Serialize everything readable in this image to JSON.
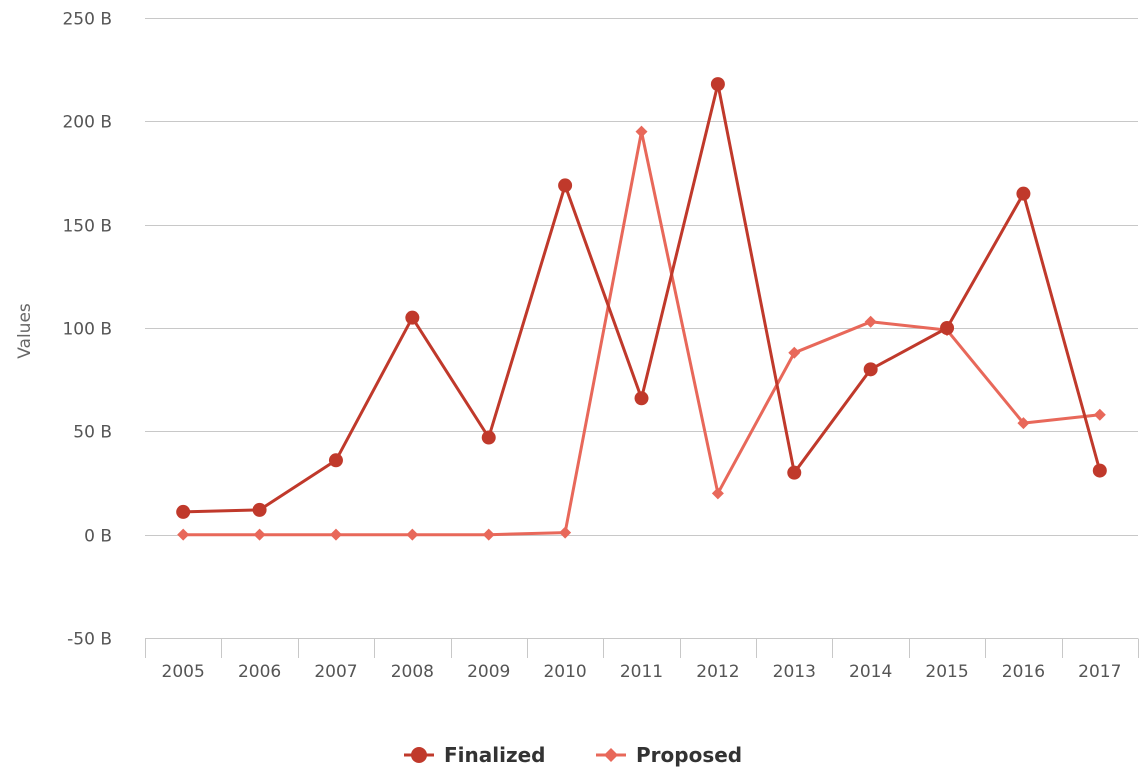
{
  "chart_data": {
    "type": "line",
    "ylabel": "Values",
    "xlabel": "",
    "x": [
      "2005",
      "2006",
      "2007",
      "2008",
      "2009",
      "2010",
      "2011",
      "2012",
      "2013",
      "2014",
      "2015",
      "2016",
      "2017"
    ],
    "ylim": [
      -50,
      250
    ],
    "yticks": [
      -50,
      0,
      50,
      100,
      150,
      200,
      250
    ],
    "ytick_labels": [
      "-50 B",
      "0 B",
      "50 B",
      "100 B",
      "150 B",
      "200 B",
      "250 B"
    ],
    "grid": true,
    "legend_position": "bottom-center",
    "series": [
      {
        "name": "Finalized",
        "marker": "circle",
        "color": "#c0392b",
        "values": [
          11,
          12,
          36,
          105,
          47,
          169,
          66,
          218,
          30,
          80,
          100,
          165,
          31
        ]
      },
      {
        "name": "Proposed",
        "marker": "diamond",
        "color": "#e8685a",
        "values": [
          0,
          0,
          0,
          0,
          0,
          1,
          195,
          20,
          88,
          103,
          99,
          54,
          58
        ]
      }
    ]
  }
}
